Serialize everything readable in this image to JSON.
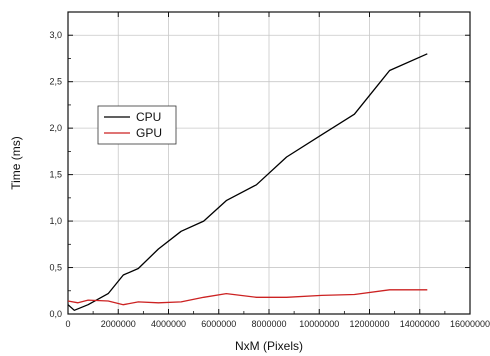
{
  "chart_data": {
    "type": "line",
    "xlabel": "NxM (Pixels)",
    "ylabel": "Time (ms)",
    "xlim": [
      0,
      16000000
    ],
    "ylim": [
      0,
      3.25
    ],
    "grid": true,
    "legend_position": "upper-left",
    "x_ticks": [
      0,
      2000000,
      4000000,
      6000000,
      8000000,
      10000000,
      12000000,
      14000000,
      16000000
    ],
    "x_tick_labels": [
      "0",
      "2000000",
      "4000000",
      "6000000",
      "8000000",
      "10000000",
      "12000000",
      "14000000",
      "16000000"
    ],
    "y_ticks": [
      0,
      0.5,
      1.0,
      1.5,
      2.0,
      2.5,
      3.0
    ],
    "y_tick_labels": [
      "0,0",
      "0,5",
      "1,0",
      "1,5",
      "2,0",
      "2,5",
      "3,0"
    ],
    "series": [
      {
        "name": "CPU",
        "color": "#000000",
        "x": [
          0,
          250000,
          800000,
          1600000,
          2200000,
          2800000,
          3600000,
          4500000,
          5400000,
          6300000,
          7500000,
          8700000,
          10100000,
          11400000,
          12800000,
          14300000
        ],
        "y": [
          0.1,
          0.04,
          0.1,
          0.22,
          0.42,
          0.49,
          0.7,
          0.89,
          1.0,
          1.22,
          1.39,
          1.69,
          1.93,
          2.15,
          2.62,
          2.8
        ]
      },
      {
        "name": "GPU",
        "color": "#cc2222",
        "x": [
          0,
          400000,
          800000,
          1600000,
          2200000,
          2800000,
          3600000,
          4500000,
          5400000,
          6300000,
          7500000,
          8700000,
          10100000,
          11400000,
          12800000,
          14300000
        ],
        "y": [
          0.14,
          0.12,
          0.15,
          0.14,
          0.1,
          0.13,
          0.12,
          0.13,
          0.18,
          0.22,
          0.18,
          0.18,
          0.2,
          0.21,
          0.26,
          0.26
        ]
      }
    ]
  }
}
